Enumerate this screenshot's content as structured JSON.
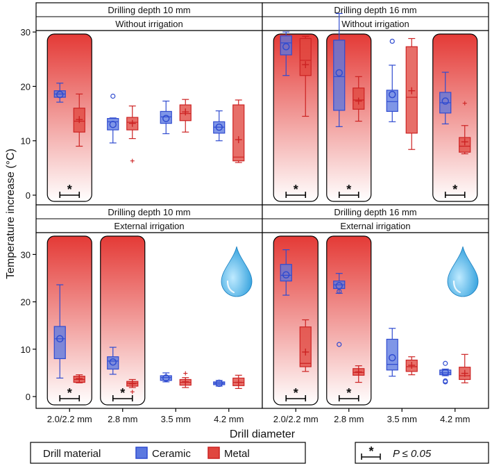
{
  "colors": {
    "ceramic_fill": "#5b78e0",
    "ceramic_stroke": "#2f4bd0",
    "metal_fill": "#e0463f",
    "metal_stroke": "#cc2222",
    "highlight_top": "#e43a36",
    "highlight_bottom": "#ffffff",
    "drop_light": "#bfeaff",
    "drop_dark": "#1e96d8"
  },
  "chart_data": {
    "type": "boxplot",
    "xlabel": "Drill diameter",
    "ylabel": "Temperature increase (°C)",
    "categories": [
      "2.0/2.2 mm",
      "2.8 mm",
      "3.5 mm",
      "4.2 mm"
    ],
    "ylim": [
      -1,
      35
    ],
    "yticks": [
      0,
      10,
      20,
      30
    ],
    "legend": {
      "title": "Drill material",
      "entries": [
        {
          "name": "Ceramic",
          "color_key": "ceramic"
        },
        {
          "name": "Metal",
          "color_key": "metal"
        }
      ],
      "sig_star": "*",
      "sig_text": "P ≤ 0.05"
    },
    "panels": [
      {
        "depth": "Drilling depth 10 mm",
        "irrigation": "Without irrigation",
        "drop_icon": false,
        "significant": [
          true,
          false,
          false,
          false
        ],
        "groups": [
          {
            "ceramic": {
              "q1": 18.0,
              "median": 18.6,
              "q3": 19.2,
              "whisker_low": 17.1,
              "whisker_high": 20.6,
              "mean": 18.5,
              "outliers": []
            },
            "metal": {
              "q1": 11.6,
              "median": 13.6,
              "q3": 16.0,
              "whisker_low": 9.0,
              "whisker_high": 18.6,
              "mean": 13.9,
              "outliers": []
            }
          },
          {
            "ceramic": {
              "q1": 12.0,
              "median": 13.5,
              "q3": 14.1,
              "whisker_low": 9.6,
              "whisker_high": 14.2,
              "mean": 13.0,
              "outliers": [
                18.2
              ]
            },
            "metal": {
              "q1": 12.0,
              "median": 13.4,
              "q3": 14.3,
              "whisker_low": 10.4,
              "whisker_high": 16.4,
              "mean": 13.2,
              "outliers": [
                6.3
              ]
            }
          },
          {
            "ceramic": {
              "q1": 13.2,
              "median": 14.4,
              "q3": 15.4,
              "whisker_low": 11.3,
              "whisker_high": 17.3,
              "mean": 14.1,
              "outliers": []
            },
            "metal": {
              "q1": 13.7,
              "median": 15.0,
              "q3": 16.6,
              "whisker_low": 11.6,
              "whisker_high": 17.6,
              "mean": 15.3,
              "outliers": []
            }
          },
          {
            "ceramic": {
              "q1": 11.4,
              "median": 12.5,
              "q3": 13.5,
              "whisker_low": 10.0,
              "whisker_high": 15.5,
              "mean": 12.5,
              "outliers": []
            },
            "metal": {
              "q1": 6.3,
              "median": 7.0,
              "q3": 16.6,
              "whisker_low": 6.0,
              "whisker_high": 17.5,
              "mean": 10.2,
              "outliers": []
            }
          }
        ]
      },
      {
        "depth": "Drilling depth 16 mm",
        "irrigation": "Without irrigation",
        "drop_icon": false,
        "significant": [
          true,
          true,
          false,
          true
        ],
        "groups": [
          {
            "ceramic": {
              "q1": 25.8,
              "median": 28.0,
              "q3": 29.3,
              "whisker_low": 22.0,
              "whisker_high": 30.0,
              "mean": 27.3,
              "outliers": []
            },
            "metal": {
              "q1": 22.0,
              "median": 24.8,
              "q3": 28.8,
              "whisker_low": 14.5,
              "whisker_high": 29.2,
              "mean": 24.0,
              "outliers": []
            }
          },
          {
            "ceramic": {
              "q1": 15.6,
              "median": 21.8,
              "q3": 28.5,
              "whisker_low": 12.6,
              "whisker_high": 33.4,
              "mean": 22.5,
              "outliers": []
            },
            "metal": {
              "q1": 15.8,
              "median": 17.5,
              "q3": 19.7,
              "whisker_low": 13.6,
              "whisker_high": 21.8,
              "mean": 17.3,
              "outliers": []
            }
          },
          {
            "ceramic": {
              "q1": 15.4,
              "median": 17.2,
              "q3": 19.3,
              "whisker_low": 13.5,
              "whisker_high": 23.9,
              "mean": 18.5,
              "outliers": [
                28.3
              ]
            },
            "metal": {
              "q1": 11.4,
              "median": 18.0,
              "q3": 27.3,
              "whisker_low": 8.4,
              "whisker_high": 28.8,
              "mean": 19.2,
              "outliers": []
            }
          },
          {
            "ceramic": {
              "q1": 15.1,
              "median": 17.0,
              "q3": 18.9,
              "whisker_low": 13.1,
              "whisker_high": 22.6,
              "mean": 17.3,
              "outliers": []
            },
            "metal": {
              "q1": 7.9,
              "median": 9.0,
              "q3": 10.6,
              "whisker_low": 7.6,
              "whisker_high": 12.8,
              "mean": 9.8,
              "outliers": [
                16.9
              ]
            }
          }
        ]
      },
      {
        "depth": "Drilling depth 10 mm",
        "irrigation": "External irrigation",
        "drop_icon": true,
        "significant": [
          true,
          true,
          false,
          false
        ],
        "groups": [
          {
            "ceramic": {
              "q1": 8.0,
              "median": 12.2,
              "q3": 14.8,
              "whisker_low": 3.9,
              "whisker_high": 23.6,
              "mean": 12.2,
              "outliers": []
            },
            "metal": {
              "q1": 3.0,
              "median": 3.6,
              "q3": 4.3,
              "whisker_low": 2.9,
              "whisker_high": 4.6,
              "mean": 3.8,
              "outliers": []
            }
          },
          {
            "ceramic": {
              "q1": 5.8,
              "median": 7.5,
              "q3": 8.4,
              "whisker_low": 4.7,
              "whisker_high": 10.4,
              "mean": 7.3,
              "outliers": []
            },
            "metal": {
              "q1": 2.2,
              "median": 2.8,
              "q3": 3.2,
              "whisker_low": 1.9,
              "whisker_high": 3.6,
              "mean": 2.7,
              "outliers": [
                1.0
              ]
            }
          },
          {
            "ceramic": {
              "q1": 3.4,
              "median": 4.0,
              "q3": 4.4,
              "whisker_low": 3.1,
              "whisker_high": 5.0,
              "mean": 3.9,
              "outliers": []
            },
            "metal": {
              "q1": 2.4,
              "median": 3.0,
              "q3": 3.6,
              "whisker_low": 1.9,
              "whisker_high": 4.0,
              "mean": 3.1,
              "outliers": [
                4.9
              ]
            }
          },
          {
            "ceramic": {
              "q1": 2.5,
              "median": 2.8,
              "q3": 3.1,
              "whisker_low": 2.2,
              "whisker_high": 3.4,
              "mean": 2.8,
              "outliers": []
            },
            "metal": {
              "q1": 2.3,
              "median": 3.0,
              "q3": 3.9,
              "whisker_low": 1.7,
              "whisker_high": 4.5,
              "mean": 3.0,
              "outliers": []
            }
          }
        ]
      },
      {
        "depth": "Drilling depth 16 mm",
        "irrigation": "External irrigation",
        "drop_icon": true,
        "significant": [
          true,
          true,
          false,
          false
        ],
        "groups": [
          {
            "ceramic": {
              "q1": 24.4,
              "median": 25.6,
              "q3": 27.9,
              "whisker_low": 21.4,
              "whisker_high": 31.0,
              "mean": 25.7,
              "outliers": []
            },
            "metal": {
              "q1": 6.3,
              "median": 7.0,
              "q3": 14.7,
              "whisker_low": 5.3,
              "whisker_high": 16.2,
              "mean": 9.4,
              "outliers": []
            }
          },
          {
            "ceramic": {
              "q1": 22.8,
              "median": 23.6,
              "q3": 24.4,
              "whisker_low": 21.8,
              "whisker_high": 26.0,
              "mean": 23.4,
              "outliers": [
                22.2,
                11.0
              ]
            },
            "metal": {
              "q1": 4.5,
              "median": 5.1,
              "q3": 5.9,
              "whisker_low": 3.0,
              "whisker_high": 6.5,
              "mean": 5.2,
              "outliers": []
            }
          },
          {
            "ceramic": {
              "q1": 5.6,
              "median": 6.8,
              "q3": 12.1,
              "whisker_low": 4.3,
              "whisker_high": 14.4,
              "mean": 8.2,
              "outliers": []
            },
            "metal": {
              "q1": 5.3,
              "median": 6.3,
              "q3": 7.7,
              "whisker_low": 4.6,
              "whisker_high": 8.4,
              "mean": 6.6,
              "outliers": []
            }
          },
          {
            "ceramic": {
              "q1": 4.6,
              "median": 5.0,
              "q3": 5.6,
              "whisker_low": 4.4,
              "whisker_high": 5.8,
              "mean": 5.1,
              "outliers": [
                7.0,
                3.3,
                3.1
              ]
            },
            "metal": {
              "q1": 3.6,
              "median": 4.4,
              "q3": 6.2,
              "whisker_low": 2.9,
              "whisker_high": 8.9,
              "mean": 4.9,
              "outliers": []
            }
          }
        ]
      }
    ]
  }
}
